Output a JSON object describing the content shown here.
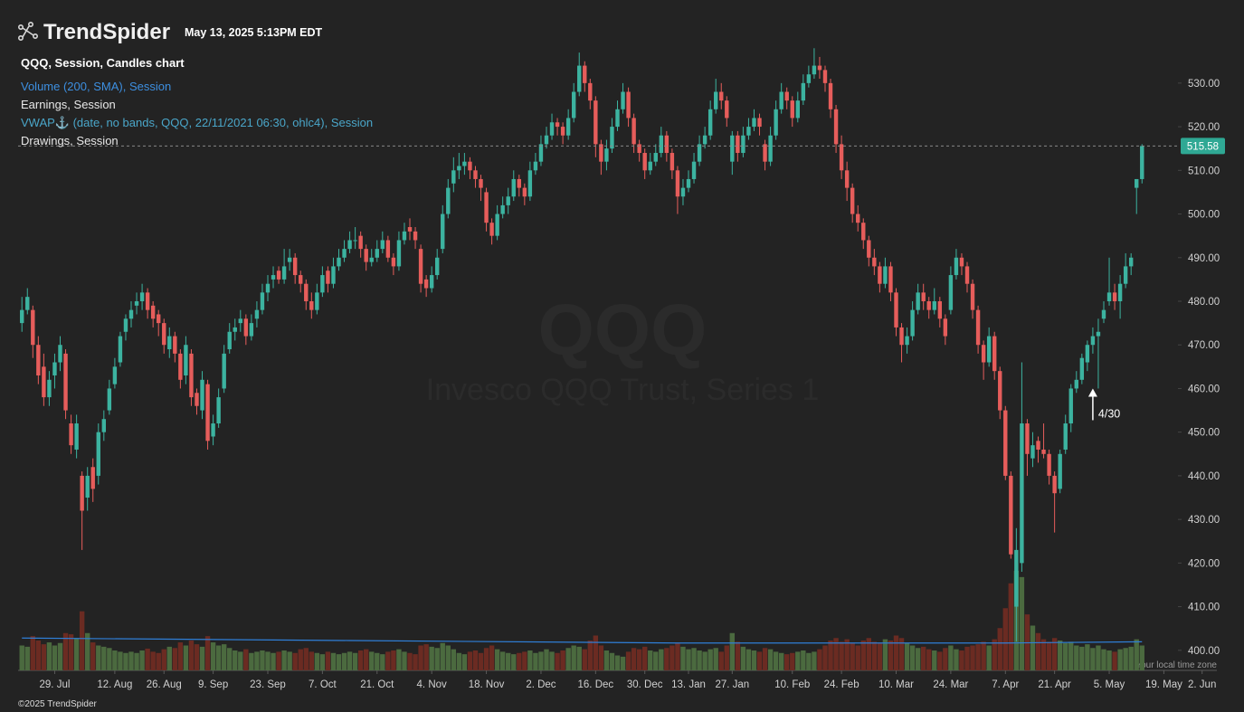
{
  "header": {
    "brand": "TrendSpider",
    "timestamp": "May 13, 2025 5:13PM EDT",
    "footer": "©2025 TrendSpider",
    "timezone_note": "Your local time zone"
  },
  "legend": [
    {
      "text": "QQQ, Session, Candles chart",
      "color": "#ffffff"
    },
    {
      "text": "Volume (200, SMA), Session",
      "color": "#3d8fe0"
    },
    {
      "text": "Earnings, Session",
      "color": "#e8e8e8"
    },
    {
      "text": "VWAP⚓ (date, no bands, QQQ, 22/11/2021 06:30, ohlc4), Session",
      "color": "#4aa6c9"
    },
    {
      "text": "Drawings, Session",
      "color": "#e8e8e8"
    }
  ],
  "chart_data": {
    "type": "candlestick",
    "watermark": [
      "QQQ",
      "Invesco QQQ Trust, Series 1"
    ],
    "up_color": "#3cb3a0",
    "down_color": "#e65d5b",
    "volume_up_color": "#4b6a3f",
    "volume_down_color": "#6b2b22",
    "sma_color": "#2f7fd8",
    "xlim": [
      -0.7,
      218.7
    ],
    "ylim": [
      395.4,
      544.9
    ],
    "volume_ylim": [
      0,
      240
    ],
    "yticks": [
      {
        "value": 400,
        "label": "400.00"
      },
      {
        "value": 410,
        "label": "410.00"
      },
      {
        "value": 420,
        "label": "420.00"
      },
      {
        "value": 430,
        "label": "430.00"
      },
      {
        "value": 440,
        "label": "440.00"
      },
      {
        "value": 450,
        "label": "450.00"
      },
      {
        "value": 460,
        "label": "460.00"
      },
      {
        "value": 470,
        "label": "470.00"
      },
      {
        "value": 480,
        "label": "480.00"
      },
      {
        "value": 490,
        "label": "490.00"
      },
      {
        "value": 500,
        "label": "500.00"
      },
      {
        "value": 510,
        "label": "510.00"
      },
      {
        "value": 520,
        "label": "520.00"
      },
      {
        "value": 530,
        "label": "530.00"
      }
    ],
    "xticks": [
      {
        "value": 6,
        "label": "29. Jul"
      },
      {
        "value": 17,
        "label": "12. Aug"
      },
      {
        "value": 26,
        "label": "26. Aug"
      },
      {
        "value": 35,
        "label": "9. Sep"
      },
      {
        "value": 45,
        "label": "23. Sep"
      },
      {
        "value": 55,
        "label": "7. Oct"
      },
      {
        "value": 65,
        "label": "21. Oct"
      },
      {
        "value": 75,
        "label": "4. Nov"
      },
      {
        "value": 85,
        "label": "18. Nov"
      },
      {
        "value": 95,
        "label": "2. Dec"
      },
      {
        "value": 105,
        "label": "16. Dec"
      },
      {
        "value": 114,
        "label": "30. Dec"
      },
      {
        "value": 122,
        "label": "13. Jan"
      },
      {
        "value": 130,
        "label": "27. Jan"
      },
      {
        "value": 141,
        "label": "10. Feb"
      },
      {
        "value": 150,
        "label": "24. Feb"
      },
      {
        "value": 160,
        "label": "10. Mar"
      },
      {
        "value": 170,
        "label": "24. Mar"
      },
      {
        "value": 180,
        "label": "7. Apr"
      },
      {
        "value": 189,
        "label": "21. Apr"
      },
      {
        "value": 199,
        "label": "5. May"
      },
      {
        "value": 209,
        "label": "19. May"
      },
      {
        "value": 216,
        "label": "2. Jun"
      }
    ],
    "annotation": {
      "text": "4/30",
      "x": 196,
      "y": 460
    },
    "candles": [
      [
        475,
        481,
        473,
        478
      ],
      [
        478,
        483,
        477,
        481
      ],
      [
        478,
        479,
        467,
        470
      ],
      [
        470,
        472,
        461,
        463
      ],
      [
        465,
        468,
        456,
        458
      ],
      [
        458,
        464,
        456,
        462
      ],
      [
        463,
        468,
        460,
        466
      ],
      [
        466,
        472,
        464,
        470
      ],
      [
        468,
        469,
        453,
        455
      ],
      [
        452,
        454,
        445,
        447
      ],
      [
        446,
        454,
        444,
        452
      ],
      [
        440,
        441,
        423,
        432
      ],
      [
        435,
        442,
        432,
        440
      ],
      [
        442,
        444,
        434,
        437
      ],
      [
        440,
        452,
        438,
        450
      ],
      [
        450,
        455,
        448,
        453
      ],
      [
        455,
        462,
        454,
        460
      ],
      [
        461,
        467,
        460,
        465
      ],
      [
        466,
        473,
        465,
        472
      ],
      [
        473,
        477,
        471,
        476
      ],
      [
        476,
        480,
        474,
        478
      ],
      [
        479,
        482,
        477,
        480
      ],
      [
        480,
        484,
        478,
        482
      ],
      [
        482,
        483,
        476,
        478
      ],
      [
        479,
        480,
        474,
        476
      ],
      [
        477,
        478,
        472,
        475
      ],
      [
        475,
        476,
        468,
        470
      ],
      [
        469,
        474,
        467,
        472
      ],
      [
        472,
        473,
        466,
        468
      ],
      [
        468,
        469,
        460,
        462
      ],
      [
        463,
        472,
        461,
        470
      ],
      [
        468,
        469,
        456,
        458
      ],
      [
        459,
        460,
        454,
        456
      ],
      [
        455,
        464,
        453,
        462
      ],
      [
        461,
        462,
        446,
        448
      ],
      [
        449,
        454,
        447,
        452
      ],
      [
        452,
        460,
        451,
        458
      ],
      [
        460,
        470,
        459,
        468
      ],
      [
        469,
        475,
        468,
        473
      ],
      [
        473,
        476,
        471,
        474
      ],
      [
        475,
        478,
        473,
        476
      ],
      [
        476,
        477,
        470,
        472
      ],
      [
        472,
        477,
        471,
        475
      ],
      [
        476,
        480,
        474,
        478
      ],
      [
        478,
        484,
        477,
        482
      ],
      [
        482,
        486,
        480,
        484
      ],
      [
        485,
        488,
        483,
        486
      ],
      [
        487,
        488,
        484,
        485
      ],
      [
        485,
        492,
        484,
        488
      ],
      [
        489,
        492,
        487,
        490
      ],
      [
        490,
        491,
        484,
        486
      ],
      [
        486,
        487,
        482,
        484
      ],
      [
        484,
        485,
        478,
        480
      ],
      [
        480,
        482,
        476,
        478
      ],
      [
        478,
        484,
        477,
        482
      ],
      [
        482,
        488,
        481,
        486
      ],
      [
        487,
        488,
        482,
        484
      ],
      [
        484,
        490,
        483,
        488
      ],
      [
        488,
        492,
        487,
        490
      ],
      [
        490,
        494,
        489,
        492
      ],
      [
        492,
        496,
        491,
        494
      ],
      [
        494,
        497,
        492,
        494
      ],
      [
        495,
        496,
        490,
        492
      ],
      [
        492,
        493,
        487,
        489
      ],
      [
        489,
        492,
        488,
        490
      ],
      [
        490,
        494,
        489,
        492
      ],
      [
        492,
        496,
        491,
        494
      ],
      [
        494,
        495,
        489,
        490
      ],
      [
        490,
        491,
        486,
        488
      ],
      [
        488,
        496,
        487,
        494
      ],
      [
        494,
        498,
        493,
        496
      ],
      [
        497,
        499,
        494,
        496
      ],
      [
        496,
        497,
        492,
        494
      ],
      [
        492,
        493,
        482,
        484
      ],
      [
        485,
        486,
        481,
        483
      ],
      [
        483,
        488,
        482,
        486
      ],
      [
        486,
        492,
        485,
        490
      ],
      [
        492,
        502,
        491,
        500
      ],
      [
        500,
        508,
        499,
        506
      ],
      [
        507,
        513,
        505,
        510
      ],
      [
        510,
        514,
        508,
        511
      ],
      [
        511,
        514,
        509,
        512
      ],
      [
        512,
        513,
        508,
        510
      ],
      [
        510,
        511,
        506,
        508
      ],
      [
        508,
        509,
        503,
        506
      ],
      [
        505,
        506,
        496,
        498
      ],
      [
        498,
        499,
        493,
        495
      ],
      [
        495,
        502,
        494,
        500
      ],
      [
        500,
        504,
        499,
        502
      ],
      [
        502,
        506,
        500,
        504
      ],
      [
        504,
        510,
        503,
        508
      ],
      [
        508,
        509,
        504,
        506
      ],
      [
        506,
        507,
        502,
        504
      ],
      [
        504,
        512,
        503,
        510
      ],
      [
        510,
        514,
        509,
        512
      ],
      [
        512,
        518,
        511,
        516
      ],
      [
        516,
        520,
        515,
        518
      ],
      [
        518,
        523,
        517,
        521
      ],
      [
        521,
        522,
        518,
        520
      ],
      [
        520,
        521,
        516,
        518
      ],
      [
        518,
        524,
        517,
        522
      ],
      [
        522,
        530,
        521,
        528
      ],
      [
        528,
        537,
        527,
        534
      ],
      [
        534,
        535,
        528,
        530
      ],
      [
        530,
        531,
        524,
        526
      ],
      [
        526,
        527,
        513,
        516
      ],
      [
        516,
        517,
        509,
        512
      ],
      [
        512,
        517,
        510,
        515
      ],
      [
        515,
        522,
        514,
        520
      ],
      [
        520,
        526,
        519,
        524
      ],
      [
        524,
        530,
        523,
        528
      ],
      [
        528,
        529,
        520,
        522
      ],
      [
        522,
        523,
        514,
        516
      ],
      [
        516,
        517,
        512,
        514
      ],
      [
        514,
        515,
        508,
        510
      ],
      [
        510,
        514,
        509,
        512
      ],
      [
        512,
        516,
        511,
        514
      ],
      [
        514,
        520,
        513,
        518
      ],
      [
        518,
        519,
        512,
        514
      ],
      [
        514,
        515,
        508,
        510
      ],
      [
        510,
        511,
        500,
        504
      ],
      [
        504,
        508,
        502,
        506
      ],
      [
        506,
        510,
        505,
        508
      ],
      [
        508,
        514,
        507,
        512
      ],
      [
        512,
        518,
        511,
        516
      ],
      [
        516,
        520,
        515,
        518
      ],
      [
        518,
        526,
        517,
        524
      ],
      [
        524,
        531,
        523,
        528
      ],
      [
        528,
        530,
        524,
        526
      ],
      [
        526,
        527,
        520,
        522
      ],
      [
        512,
        519,
        509,
        518
      ],
      [
        518,
        519,
        512,
        514
      ],
      [
        514,
        520,
        513,
        518
      ],
      [
        518,
        522,
        517,
        520
      ],
      [
        520,
        524,
        519,
        522
      ],
      [
        522,
        523,
        518,
        520
      ],
      [
        516,
        517,
        510,
        512
      ],
      [
        512,
        520,
        511,
        518
      ],
      [
        518,
        526,
        517,
        524
      ],
      [
        524,
        530,
        523,
        528
      ],
      [
        528,
        529,
        524,
        526
      ],
      [
        526,
        527,
        520,
        522
      ],
      [
        522,
        528,
        521,
        526
      ],
      [
        526,
        532,
        525,
        530
      ],
      [
        530,
        534,
        529,
        532
      ],
      [
        532,
        538,
        531,
        534
      ],
      [
        534,
        536,
        531,
        533
      ],
      [
        533,
        534,
        528,
        530
      ],
      [
        530,
        531,
        522,
        524
      ],
      [
        524,
        525,
        514,
        516
      ],
      [
        516,
        518,
        508,
        510
      ],
      [
        510,
        512,
        503,
        506
      ],
      [
        506,
        507,
        498,
        500
      ],
      [
        500,
        502,
        496,
        498
      ],
      [
        498,
        499,
        492,
        494
      ],
      [
        494,
        495,
        488,
        490
      ],
      [
        490,
        492,
        486,
        488
      ],
      [
        488,
        489,
        482,
        484
      ],
      [
        484,
        490,
        483,
        488
      ],
      [
        488,
        489,
        480,
        482
      ],
      [
        482,
        483,
        472,
        474
      ],
      [
        474,
        475,
        466,
        470
      ],
      [
        470,
        474,
        468,
        472
      ],
      [
        472,
        480,
        471,
        478
      ],
      [
        478,
        484,
        477,
        482
      ],
      [
        482,
        484,
        478,
        480
      ],
      [
        480,
        481,
        476,
        478
      ],
      [
        478,
        483,
        477,
        480
      ],
      [
        480,
        481,
        474,
        476
      ],
      [
        476,
        477,
        470,
        472
      ],
      [
        478,
        488,
        477,
        486
      ],
      [
        486,
        492,
        485,
        490
      ],
      [
        490,
        491,
        486,
        488
      ],
      [
        488,
        489,
        482,
        484
      ],
      [
        484,
        485,
        476,
        478
      ],
      [
        478,
        479,
        468,
        470
      ],
      [
        470,
        471,
        462,
        466
      ],
      [
        466,
        474,
        465,
        472
      ],
      [
        472,
        473,
        462,
        464
      ],
      [
        464,
        465,
        453,
        455
      ],
      [
        455,
        456,
        439,
        440
      ],
      [
        440,
        441,
        421,
        422
      ],
      [
        410,
        428,
        402,
        423
      ],
      [
        420,
        466,
        418,
        452
      ],
      [
        452,
        453,
        440,
        445
      ],
      [
        444,
        450,
        442,
        447
      ],
      [
        448,
        449,
        443,
        446
      ],
      [
        446,
        452,
        444,
        445
      ],
      [
        445,
        446,
        438,
        440
      ],
      [
        440,
        441,
        427,
        436
      ],
      [
        437,
        446,
        436,
        445
      ],
      [
        446,
        454,
        445,
        452
      ],
      [
        452,
        461,
        450,
        460
      ],
      [
        460,
        464,
        459,
        462
      ],
      [
        462,
        468,
        461,
        467
      ],
      [
        466,
        471,
        464,
        470
      ],
      [
        470,
        474,
        468,
        472
      ],
      [
        472,
        476,
        460,
        473
      ],
      [
        476,
        480,
        475,
        478
      ],
      [
        480,
        490,
        479,
        482
      ],
      [
        482,
        484,
        478,
        480
      ],
      [
        480,
        486,
        476,
        484
      ],
      [
        484,
        491,
        483,
        488
      ],
      [
        488,
        491,
        486,
        490
      ],
      [
        506,
        508,
        500,
        508
      ],
      [
        508,
        516,
        507,
        515.58
      ]
    ],
    "volume": [
      40,
      38,
      55,
      48,
      42,
      45,
      40,
      44,
      60,
      58,
      52,
      95,
      60,
      45,
      40,
      38,
      36,
      32,
      30,
      28,
      30,
      28,
      32,
      35,
      30,
      28,
      34,
      38,
      36,
      45,
      40,
      48,
      42,
      38,
      55,
      45,
      40,
      42,
      36,
      32,
      30,
      34,
      28,
      30,
      32,
      30,
      28,
      30,
      32,
      30,
      28,
      34,
      36,
      30,
      28,
      26,
      30,
      28,
      26,
      28,
      30,
      28,
      32,
      34,
      30,
      28,
      26,
      30,
      32,
      34,
      30,
      28,
      26,
      40,
      42,
      38,
      36,
      44,
      40,
      34,
      28,
      26,
      30,
      32,
      28,
      36,
      40,
      34,
      30,
      28,
      26,
      28,
      30,
      32,
      28,
      30,
      34,
      30,
      28,
      32,
      36,
      40,
      38,
      34,
      48,
      56,
      40,
      32,
      28,
      24,
      22,
      30,
      36,
      34,
      38,
      32,
      30,
      34,
      36,
      40,
      44,
      38,
      34,
      36,
      32,
      30,
      34,
      36,
      30,
      40,
      60,
      46,
      38,
      34,
      32,
      30,
      36,
      34,
      30,
      28,
      26,
      28,
      30,
      32,
      28,
      30,
      34,
      40,
      48,
      52,
      46,
      50,
      44,
      40,
      48,
      52,
      46,
      44,
      50,
      48,
      56,
      52,
      44,
      40,
      36,
      38,
      34,
      32,
      30,
      36,
      40,
      34,
      32,
      38,
      40,
      42,
      46,
      40,
      50,
      68,
      100,
      140,
      160,
      150,
      90,
      72,
      60,
      50,
      46,
      52,
      48,
      44,
      46,
      40,
      38,
      42,
      36,
      40,
      34,
      32,
      30,
      34,
      36,
      38,
      50,
      40
    ],
    "volume_sma": {
      "x": [
        0,
        60,
        120,
        180,
        205
      ],
      "values": [
        52,
        48,
        44,
        44,
        46
      ]
    }
  }
}
